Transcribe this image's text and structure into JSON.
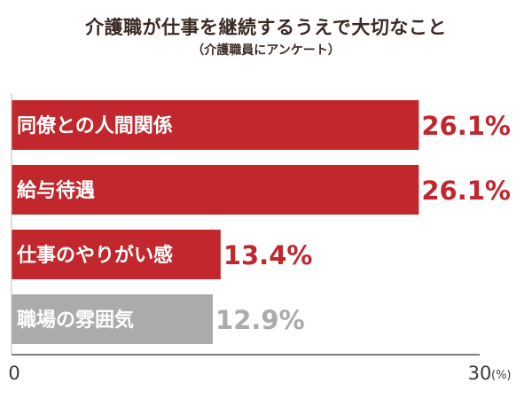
{
  "header": {
    "title": "介護職が仕事を継続するうえで大切なこと",
    "subtitle": "（介護職員にアンケート）"
  },
  "chart_data": {
    "type": "bar",
    "orientation": "horizontal",
    "categories": [
      "同僚との人間関係",
      "給与待遇",
      "仕事のやりがい感",
      "職場の雰囲気"
    ],
    "values": [
      26.1,
      26.1,
      13.4,
      12.9
    ],
    "value_labels": [
      "26.1%",
      "26.1%",
      "13.4%",
      "12.9%"
    ],
    "bar_colors": [
      "#c1272d",
      "#c1272d",
      "#c1272d",
      "#ababab"
    ],
    "value_label_colors": [
      "#c1272d",
      "#c1272d",
      "#c1272d",
      "#ababab"
    ],
    "xlim": [
      0,
      30
    ],
    "x_tick_labels": [
      "0",
      "30"
    ],
    "x_unit": "(%)",
    "grid": false,
    "legend": "none"
  },
  "colors": {
    "accent": "#c1272d",
    "muted": "#ababab",
    "axis": "#555555",
    "title": "#3b2a24"
  }
}
